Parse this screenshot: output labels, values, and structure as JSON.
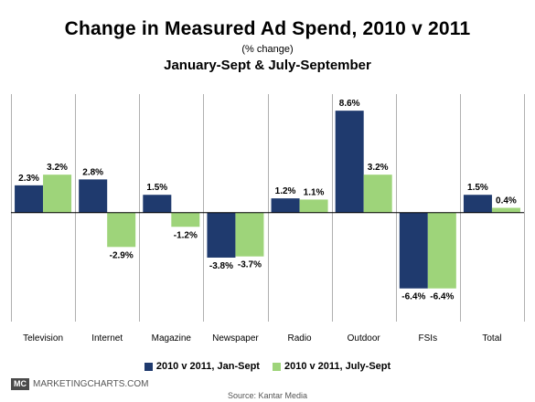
{
  "chart_data": {
    "type": "bar",
    "title": "Change in Measured Ad Spend, 2010 v 2011",
    "unit_label": "(% change)",
    "subtitle": "January-Sept & July-September",
    "categories": [
      "Television",
      "Internet",
      "Magazine",
      "Newspaper",
      "Radio",
      "Outdoor",
      "FSIs",
      "Total"
    ],
    "series": [
      {
        "name": "2010 v 2011, Jan-Sept",
        "color": "#1f3a6e",
        "values": [
          2.3,
          2.8,
          1.5,
          -3.8,
          1.2,
          8.6,
          -6.4,
          1.5
        ],
        "labels": [
          "2.3%",
          "2.8%",
          "1.5%",
          "-3.8%",
          "1.2%",
          "8.6%",
          "-6.4%",
          "1.5%"
        ]
      },
      {
        "name": "2010 v 2011, July-Sept",
        "color": "#9ed47a",
        "values": [
          3.2,
          -2.9,
          -1.2,
          -3.7,
          1.1,
          3.2,
          -6.4,
          0.4
        ],
        "labels": [
          "3.2%",
          "-2.9%",
          "-1.2%",
          "-3.7%",
          "1.1%",
          "3.2%",
          "-6.4%",
          "0.4%"
        ]
      }
    ],
    "ylim": [
      -9.2,
      10.0
    ],
    "grid": "vertical-separators",
    "legend_position": "bottom"
  },
  "footer": {
    "brand_logo": "MC",
    "brand_name": "MARKETINGCHARTS.COM",
    "source": "Source: Kantar Media"
  }
}
